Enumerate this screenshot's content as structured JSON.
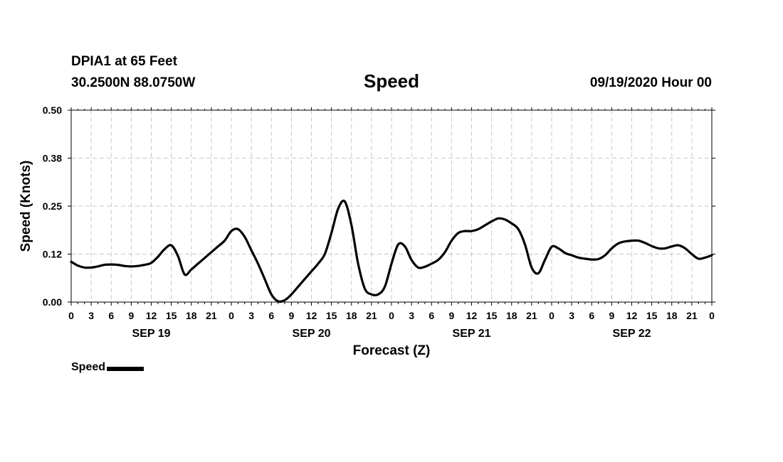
{
  "header": {
    "station": "DPIA1 at 65 Feet",
    "coords": "30.2500N 88.0750W",
    "title": "Speed",
    "datetime": "09/19/2020 Hour 00"
  },
  "legend": {
    "label": "Speed"
  },
  "chart_data": {
    "type": "line",
    "title": "Speed",
    "xlabel": "Forecast (Z)",
    "ylabel": "Speed (Knots)",
    "ylim": [
      0,
      0.5
    ],
    "yticks": [
      "0.00",
      "0.12",
      "0.25",
      "0.38",
      "0.50"
    ],
    "xlim": [
      0,
      96
    ],
    "xticks": [
      "0",
      "3",
      "6",
      "9",
      "12",
      "15",
      "18",
      "21",
      "0",
      "3",
      "6",
      "9",
      "12",
      "15",
      "18",
      "21",
      "0",
      "3",
      "6",
      "9",
      "12",
      "15",
      "18",
      "21",
      "0",
      "3",
      "6",
      "9",
      "12",
      "15",
      "18",
      "21",
      "0"
    ],
    "day_labels": [
      {
        "label": "SEP 19",
        "hour": 12
      },
      {
        "label": "SEP 20",
        "hour": 36
      },
      {
        "label": "SEP 21",
        "hour": 60
      },
      {
        "label": "SEP 22",
        "hour": 84
      }
    ],
    "grid": true,
    "series": [
      {
        "name": "Speed",
        "x": [
          0,
          1,
          2,
          3,
          4,
          5,
          6,
          7,
          8,
          9,
          10,
          11,
          12,
          13,
          14,
          15,
          16,
          17,
          18,
          19,
          20,
          21,
          22,
          23,
          24,
          25,
          26,
          27,
          28,
          29,
          30,
          31,
          32,
          33,
          34,
          35,
          36,
          37,
          38,
          39,
          40,
          41,
          42,
          43,
          44,
          45,
          46,
          47,
          48,
          49,
          50,
          51,
          52,
          53,
          54,
          55,
          56,
          57,
          58,
          59,
          60,
          61,
          62,
          63,
          64,
          65,
          66,
          67,
          68,
          69,
          70,
          71,
          72,
          73,
          74,
          75,
          76,
          77,
          78,
          79,
          80,
          81,
          82,
          83,
          84,
          85,
          86,
          87,
          88,
          89,
          90,
          91,
          92,
          93,
          94,
          95,
          96
        ],
        "values": [
          0.105,
          0.095,
          0.09,
          0.09,
          0.093,
          0.097,
          0.098,
          0.097,
          0.094,
          0.093,
          0.094,
          0.097,
          0.102,
          0.118,
          0.138,
          0.148,
          0.12,
          0.072,
          0.085,
          0.1,
          0.115,
          0.13,
          0.145,
          0.16,
          0.185,
          0.19,
          0.17,
          0.135,
          0.1,
          0.06,
          0.02,
          0.002,
          0.005,
          0.02,
          0.04,
          0.06,
          0.08,
          0.1,
          0.125,
          0.18,
          0.243,
          0.262,
          0.2,
          0.1,
          0.035,
          0.02,
          0.02,
          0.04,
          0.1,
          0.15,
          0.145,
          0.11,
          0.09,
          0.092,
          0.1,
          0.11,
          0.13,
          0.16,
          0.18,
          0.185,
          0.185,
          0.19,
          0.2,
          0.21,
          0.218,
          0.215,
          0.205,
          0.19,
          0.15,
          0.09,
          0.075,
          0.11,
          0.144,
          0.14,
          0.128,
          0.122,
          0.116,
          0.113,
          0.111,
          0.112,
          0.122,
          0.14,
          0.153,
          0.158,
          0.16,
          0.16,
          0.154,
          0.146,
          0.14,
          0.14,
          0.145,
          0.148,
          0.14,
          0.125,
          0.113,
          0.116,
          0.122
        ]
      }
    ]
  }
}
